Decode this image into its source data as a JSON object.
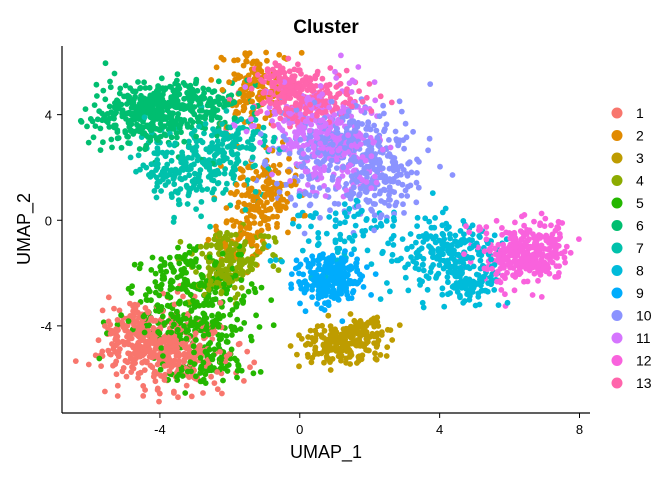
{
  "chart_data": {
    "type": "scatter",
    "title": "Cluster",
    "xlabel": "UMAP_1",
    "ylabel": "UMAP_2",
    "xlim": [
      -6.8,
      8.3
    ],
    "ylim": [
      -7.3,
      6.6
    ],
    "xticks": [
      -4,
      0,
      4,
      8
    ],
    "yticks": [
      -4,
      0,
      4
    ],
    "xtick_labels": [
      "-4",
      "0",
      "4",
      "8"
    ],
    "ytick_labels": [
      "-4",
      "0",
      "4"
    ],
    "grid": false,
    "legend_position": "right",
    "series": [
      {
        "name": "1",
        "color": "#F8766D",
        "blobs": [
          {
            "cx": -3.8,
            "cy": -4.8,
            "sx": 0.9,
            "sy": 0.8,
            "n": 380
          },
          {
            "cx": -4.6,
            "cy": -4.2,
            "sx": 0.5,
            "sy": 0.5,
            "n": 90
          }
        ]
      },
      {
        "name": "2",
        "color": "#E18A00",
        "blobs": [
          {
            "cx": -1.3,
            "cy": 5.0,
            "sx": 0.45,
            "sy": 0.7,
            "n": 140
          },
          {
            "cx": -1.0,
            "cy": 1.0,
            "sx": 0.55,
            "sy": 0.8,
            "n": 150
          },
          {
            "cx": -1.6,
            "cy": -0.8,
            "sx": 0.4,
            "sy": 0.5,
            "n": 60
          }
        ]
      },
      {
        "name": "3",
        "color": "#BE9C00",
        "blobs": [
          {
            "cx": 1.2,
            "cy": -4.7,
            "sx": 0.6,
            "sy": 0.35,
            "n": 170
          },
          {
            "cx": 1.9,
            "cy": -4.1,
            "sx": 0.3,
            "sy": 0.3,
            "n": 60
          }
        ]
      },
      {
        "name": "4",
        "color": "#8CAB00",
        "blobs": [
          {
            "cx": -2.0,
            "cy": -1.3,
            "sx": 0.55,
            "sy": 0.6,
            "n": 130
          },
          {
            "cx": -2.3,
            "cy": -2.4,
            "sx": 0.4,
            "sy": 0.4,
            "n": 50
          }
        ]
      },
      {
        "name": "5",
        "color": "#24B700",
        "blobs": [
          {
            "cx": -3.0,
            "cy": -3.6,
            "sx": 0.9,
            "sy": 0.9,
            "n": 280
          },
          {
            "cx": -3.4,
            "cy": -2.0,
            "sx": 0.6,
            "sy": 0.6,
            "n": 90
          },
          {
            "cx": -2.5,
            "cy": -5.6,
            "sx": 0.6,
            "sy": 0.3,
            "n": 60
          }
        ]
      },
      {
        "name": "6",
        "color": "#00BE70",
        "blobs": [
          {
            "cx": -4.4,
            "cy": 4.0,
            "sx": 0.8,
            "sy": 0.6,
            "n": 330
          },
          {
            "cx": -3.3,
            "cy": 4.6,
            "sx": 0.5,
            "sy": 0.4,
            "n": 90
          },
          {
            "cx": -2.2,
            "cy": 4.3,
            "sx": 0.5,
            "sy": 0.4,
            "n": 50
          }
        ]
      },
      {
        "name": "7",
        "color": "#00C1AB",
        "blobs": [
          {
            "cx": -2.8,
            "cy": 2.0,
            "sx": 0.8,
            "sy": 0.8,
            "n": 200
          },
          {
            "cx": -4.0,
            "cy": 1.8,
            "sx": 0.4,
            "sy": 0.6,
            "n": 50
          },
          {
            "cx": -1.8,
            "cy": 3.1,
            "sx": 0.5,
            "sy": 0.5,
            "n": 70
          }
        ]
      },
      {
        "name": "8",
        "color": "#00BBDA",
        "blobs": [
          {
            "cx": 4.3,
            "cy": -1.3,
            "sx": 0.7,
            "sy": 0.6,
            "n": 230
          },
          {
            "cx": 4.9,
            "cy": -2.5,
            "sx": 0.4,
            "sy": 0.3,
            "n": 70
          },
          {
            "cx": 1.5,
            "cy": -0.4,
            "sx": 1.2,
            "sy": 0.8,
            "n": 90
          }
        ]
      },
      {
        "name": "9",
        "color": "#00ACFC",
        "blobs": [
          {
            "cx": 0.8,
            "cy": -2.2,
            "sx": 0.45,
            "sy": 0.45,
            "n": 260
          }
        ]
      },
      {
        "name": "10",
        "color": "#8B93FF",
        "blobs": [
          {
            "cx": 1.3,
            "cy": 2.6,
            "sx": 1.0,
            "sy": 1.0,
            "n": 360
          },
          {
            "cx": 2.4,
            "cy": 1.3,
            "sx": 0.5,
            "sy": 0.7,
            "n": 100
          }
        ]
      },
      {
        "name": "11",
        "color": "#D575FE",
        "blobs": [
          {
            "cx": 0.6,
            "cy": 3.6,
            "sx": 0.8,
            "sy": 0.8,
            "n": 250
          },
          {
            "cx": 1.2,
            "cy": 2.0,
            "sx": 0.6,
            "sy": 0.6,
            "n": 80
          }
        ]
      },
      {
        "name": "12",
        "color": "#F962DD",
        "blobs": [
          {
            "cx": 6.3,
            "cy": -1.3,
            "sx": 0.6,
            "sy": 0.55,
            "n": 290
          },
          {
            "cx": 7.1,
            "cy": -0.9,
            "sx": 0.3,
            "sy": 0.35,
            "n": 60
          }
        ]
      },
      {
        "name": "13",
        "color": "#FF65AC",
        "blobs": [
          {
            "cx": 0.2,
            "cy": 4.7,
            "sx": 0.8,
            "sy": 0.45,
            "n": 230
          },
          {
            "cx": -0.5,
            "cy": 5.3,
            "sx": 0.4,
            "sy": 0.3,
            "n": 60
          }
        ]
      }
    ]
  }
}
